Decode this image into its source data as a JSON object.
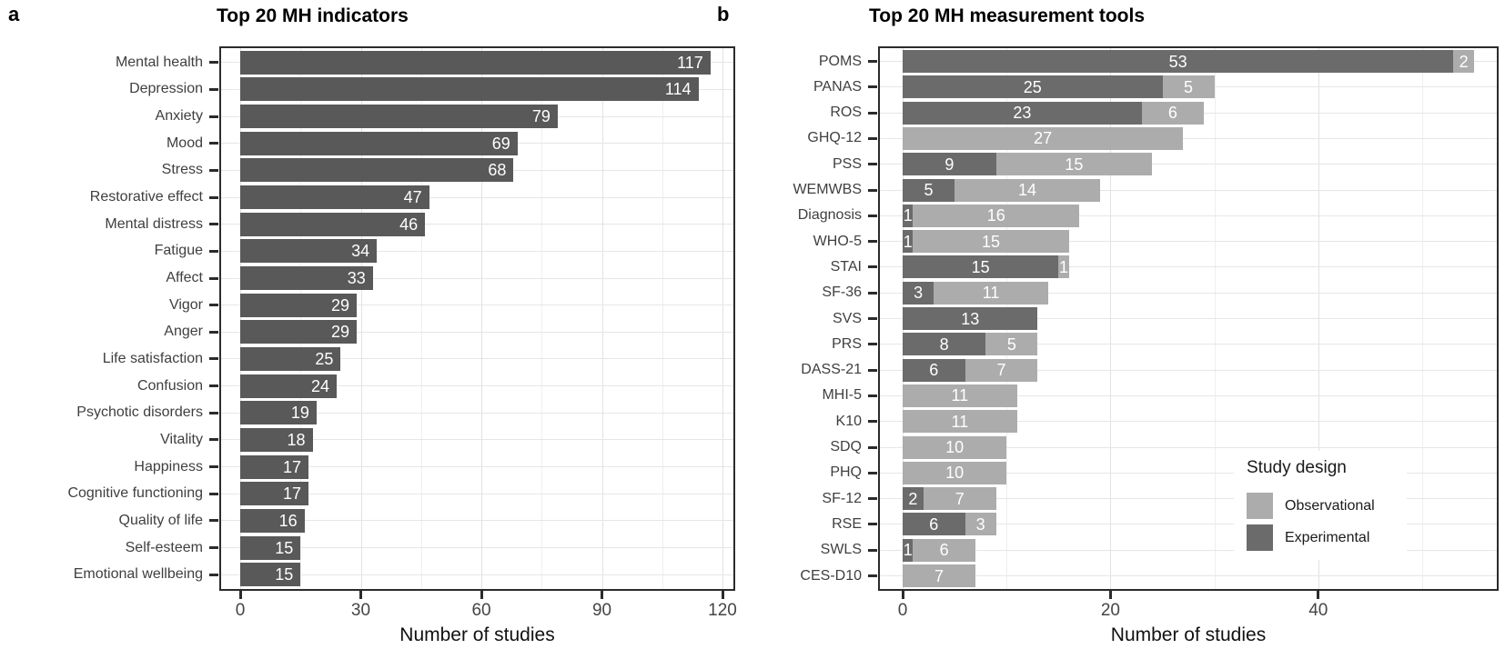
{
  "figure": {
    "panels": [
      {
        "letter": "a"
      },
      {
        "letter": "b"
      }
    ]
  },
  "chart_data": [
    {
      "type": "bar",
      "orientation": "horizontal",
      "title": "Top 20 MH indicators",
      "xlabel": "Number of studies",
      "ylabel": "",
      "categories": [
        "Mental health",
        "Depression",
        "Anxiety",
        "Mood",
        "Stress",
        "Restorative effect",
        "Mental distress",
        "Fatigue",
        "Affect",
        "Vigor",
        "Anger",
        "Life satisfaction",
        "Confusion",
        "Psychotic disorders",
        "Vitality",
        "Happiness",
        "Cognitive functioning",
        "Quality of life",
        "Self-esteem",
        "Emotional wellbeing"
      ],
      "values": [
        117,
        114,
        79,
        69,
        68,
        47,
        46,
        34,
        33,
        29,
        29,
        25,
        24,
        19,
        18,
        17,
        17,
        16,
        15,
        15
      ],
      "xticks": [
        0,
        30,
        60,
        90,
        120
      ],
      "xminorticks": [
        15,
        45,
        75,
        105
      ],
      "xlim": [
        0,
        123
      ],
      "grid": true,
      "bar_color": "#595959",
      "value_label_color": "#ffffff"
    },
    {
      "type": "stacked_bar",
      "orientation": "horizontal",
      "title": "Top 20 MH measurement tools",
      "xlabel": "Number of studies",
      "ylabel": "",
      "categories": [
        "POMS",
        "PANAS",
        "ROS",
        "GHQ-12",
        "PSS",
        "WEMWBS",
        "Diagnosis",
        "WHO-5",
        "STAI",
        "SF-36",
        "SVS",
        "PRS",
        "DASS-21",
        "MHI-5",
        "K10",
        "SDQ",
        "PHQ",
        "SF-12",
        "RSE",
        "SWLS",
        "CES-D10"
      ],
      "series": [
        {
          "name": "Experimental",
          "color": "#6b6b6b",
          "values": [
            53,
            25,
            23,
            0,
            9,
            5,
            1,
            1,
            15,
            3,
            13,
            8,
            6,
            0,
            0,
            0,
            0,
            2,
            6,
            1,
            0
          ]
        },
        {
          "name": "Observational",
          "color": "#acacac",
          "values": [
            2,
            5,
            6,
            27,
            15,
            14,
            16,
            15,
            1,
            11,
            0,
            5,
            7,
            11,
            11,
            10,
            10,
            7,
            3,
            6,
            7
          ]
        }
      ],
      "xticks": [
        0,
        20,
        40
      ],
      "xminorticks": [
        10,
        30,
        50
      ],
      "xlim": [
        0,
        57.5
      ],
      "grid": true,
      "value_label_color": "#ffffff",
      "legend": {
        "title": "Study design",
        "entries": [
          {
            "label": "Observational",
            "color": "#acacac"
          },
          {
            "label": "Experimental",
            "color": "#6b6b6b"
          }
        ]
      }
    }
  ]
}
